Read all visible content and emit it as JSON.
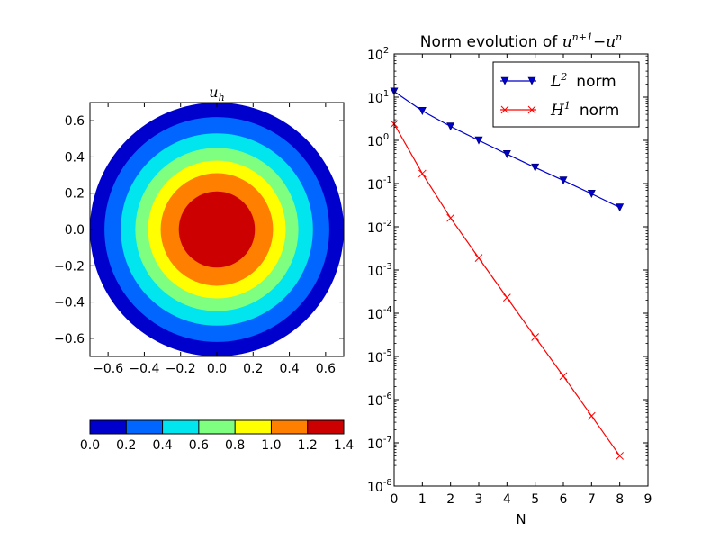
{
  "chart_data": [
    {
      "type": "contour",
      "title": "u_h",
      "title_parts": {
        "base": "u",
        "sub": "h"
      },
      "xlim": [
        -0.7,
        0.7
      ],
      "ylim": [
        -0.7,
        0.7
      ],
      "xticks": [
        "−0.6",
        "−0.4",
        "−0.2",
        "0.0",
        "0.2",
        "0.4",
        "0.6"
      ],
      "yticks": [
        "0.6",
        "0.4",
        "0.2",
        "0.0",
        "−0.2",
        "−0.4",
        "−0.6"
      ],
      "xtick_values": [
        -0.6,
        -0.4,
        -0.2,
        0.0,
        0.2,
        0.4,
        0.6
      ],
      "ytick_values": [
        0.6,
        0.4,
        0.2,
        0.0,
        -0.2,
        -0.4,
        -0.6
      ],
      "domain_radius": 0.7,
      "levels": [
        {
          "min": 0.0,
          "max": 0.2,
          "outer_radius": 0.7,
          "color": "#0000cc"
        },
        {
          "min": 0.2,
          "max": 0.4,
          "outer_radius": 0.62,
          "color": "#0066ff"
        },
        {
          "min": 0.4,
          "max": 0.6,
          "outer_radius": 0.53,
          "color": "#00e5ee"
        },
        {
          "min": 0.6,
          "max": 0.8,
          "outer_radius": 0.45,
          "color": "#7fff7f"
        },
        {
          "min": 0.8,
          "max": 1.0,
          "outer_radius": 0.38,
          "color": "#ffff00"
        },
        {
          "min": 1.0,
          "max": 1.2,
          "outer_radius": 0.31,
          "color": "#ff7f00"
        },
        {
          "min": 1.2,
          "max": 1.4,
          "outer_radius": 0.21,
          "color": "#cc0000"
        }
      ],
      "colorbar": {
        "ticks": [
          "0.0",
          "0.2",
          "0.4",
          "0.6",
          "0.8",
          "1.0",
          "1.2",
          "1.4"
        ],
        "colors": [
          "#0000cc",
          "#0066ff",
          "#00e5ee",
          "#7fff7f",
          "#ffff00",
          "#ff7f00",
          "#cc0000"
        ]
      }
    },
    {
      "type": "line",
      "title": "Norm evolution of u^{n+1}−u^n",
      "title_parts": {
        "prefix": "Norm evolution of ",
        "base": "u",
        "sup1": "n+1",
        "minus": "−",
        "base2": "u",
        "sup2": "n"
      },
      "xlabel": "N",
      "xlim": [
        0,
        9
      ],
      "ylim_log10": [
        -8,
        2
      ],
      "yscale": "log",
      "xticks": [
        "0",
        "1",
        "2",
        "3",
        "4",
        "5",
        "6",
        "7",
        "8",
        "9"
      ],
      "ytick_labels": [
        {
          "base": "10",
          "exp": "2"
        },
        {
          "base": "10",
          "exp": "1"
        },
        {
          "base": "10",
          "exp": "0"
        },
        {
          "base": "10",
          "exp": "-1"
        },
        {
          "base": "10",
          "exp": "-2"
        },
        {
          "base": "10",
          "exp": "-3"
        },
        {
          "base": "10",
          "exp": "-4"
        },
        {
          "base": "10",
          "exp": "-5"
        },
        {
          "base": "10",
          "exp": "-6"
        },
        {
          "base": "10",
          "exp": "-7"
        },
        {
          "base": "10",
          "exp": "-8"
        }
      ],
      "legend_position": "top-right",
      "series": [
        {
          "name": "L^2 norm",
          "legend": {
            "base": "L",
            "sup": "2",
            "suffix": "norm"
          },
          "color": "#0000cc",
          "marker": "triangle-down",
          "x": [
            0,
            1,
            2,
            3,
            4,
            5,
            6,
            7,
            8
          ],
          "y": [
            13.5,
            4.8,
            2.1,
            1.0,
            0.48,
            0.235,
            0.118,
            0.058,
            0.028
          ]
        },
        {
          "name": "H^1 norm",
          "legend": {
            "base": "H",
            "sup": "1",
            "suffix": "norm"
          },
          "color": "#ff0000",
          "marker": "x",
          "x": [
            0,
            1,
            2,
            3,
            4,
            5,
            6,
            7,
            8
          ],
          "y": [
            2.4,
            0.17,
            0.016,
            0.0019,
            0.00023,
            2.8e-05,
            3.5e-06,
            4.2e-07,
            5e-08
          ]
        }
      ]
    }
  ]
}
